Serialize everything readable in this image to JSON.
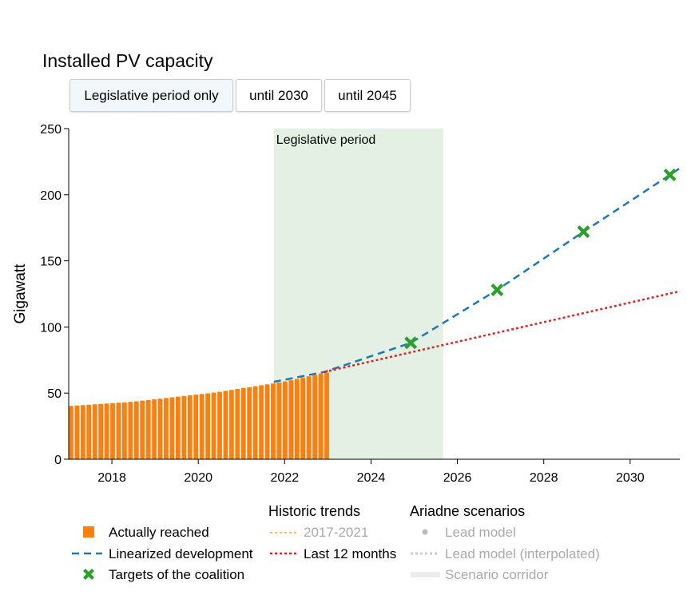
{
  "title": "Installed PV capacity",
  "buttons": [
    {
      "label": "Legislative period only",
      "active": true
    },
    {
      "label": "until 2030",
      "active": false
    },
    {
      "label": "until 2045",
      "active": false
    }
  ],
  "colors": {
    "actual": "#ff7f0e",
    "linearized": "#1f77b4",
    "targets": "#2ca02c",
    "trend_2017_2021": "#ffbb78",
    "trend_last12": "#d62728",
    "legislative_band": "#e3f0e3",
    "muted": "#aaaaaa"
  },
  "legend": {
    "col1": [
      "Actually reached",
      "Linearized development",
      "Targets of the coalition"
    ],
    "historic_title": "Historic trends",
    "historic": [
      "2017-2021",
      "Last 12 months"
    ],
    "ariadne_title": "Ariadne scenarios",
    "ariadne": [
      "Lead model",
      "Lead model (interpolated)",
      "Scenario corridor"
    ]
  },
  "chart_data": {
    "type": "bar",
    "title": "Installed PV capacity",
    "ylabel": "Gigawatt",
    "xlabel": "",
    "xlim": [
      2017.0,
      2031.15
    ],
    "ylim": [
      0,
      250
    ],
    "xticks": [
      2018,
      2020,
      2022,
      2024,
      2026,
      2028,
      2030
    ],
    "yticks": [
      0,
      50,
      100,
      150,
      200,
      250
    ],
    "grid": false,
    "legislative_period": {
      "label": "Legislative period",
      "start": 2021.75,
      "end": 2025.67
    },
    "actual": {
      "name": "Actually reached",
      "start": 2017.0,
      "end": 2022.92,
      "values": [
        40.3,
        40.6,
        40.9,
        41.2,
        41.5,
        41.8,
        42.1,
        42.4,
        42.7,
        43.0,
        43.4,
        43.8,
        44.3,
        44.8,
        45.3,
        45.8,
        46.3,
        46.8,
        47.3,
        47.8,
        48.3,
        48.8,
        49.3,
        49.8,
        50.4,
        51.0,
        51.7,
        52.4,
        53.1,
        53.8,
        54.5,
        55.2,
        55.9,
        56.6,
        57.3,
        58.0,
        58.8,
        59.7,
        60.7,
        61.7,
        62.7,
        63.8,
        64.8,
        65.5
      ],
      "note": "monthly values Jan 2017 - Dec 2022 (bar every ~0.135 yr)"
    },
    "series": [
      {
        "name": "Linearized development",
        "x": [
          2021.75,
          2022.92,
          2024.92,
          2026.92,
          2028.92,
          2030.92,
          2031.15
        ],
        "y": [
          58.5,
          66.0,
          88.0,
          128.0,
          172.0,
          215.0,
          220.0
        ]
      },
      {
        "name": "Targets of the coalition",
        "x": [
          2024.92,
          2026.92,
          2028.92,
          2030.92
        ],
        "y": [
          88,
          128,
          172,
          215
        ]
      },
      {
        "name": "Last 12 months",
        "x": [
          2022.92,
          2031.15
        ],
        "y": [
          66.0,
          127.0
        ]
      }
    ]
  }
}
